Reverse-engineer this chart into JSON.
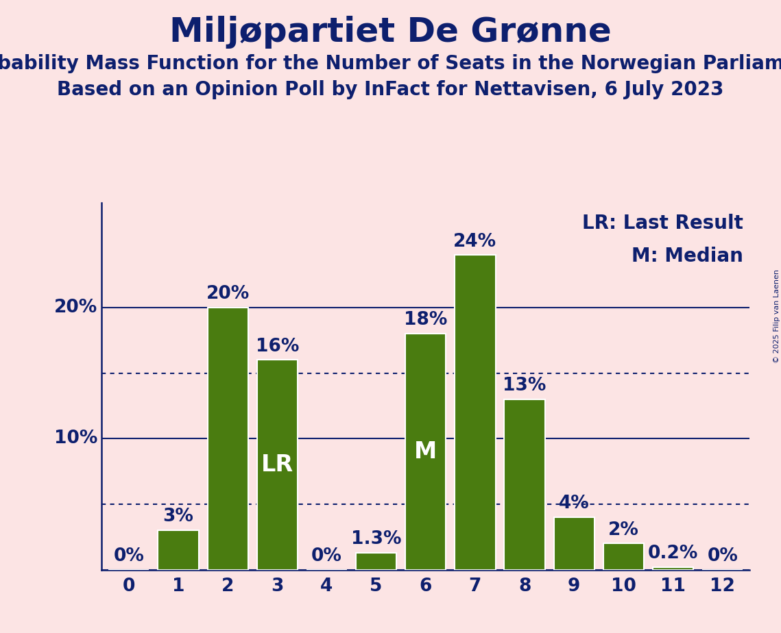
{
  "title": "Miljøpartiet De Grønne",
  "subtitle1": "Probability Mass Function for the Number of Seats in the Norwegian Parliament",
  "subtitle2": "Based on an Opinion Poll by InFact for Nettavisen, 6 July 2023",
  "copyright": "© 2025 Filip van Laenen",
  "seats": [
    0,
    1,
    2,
    3,
    4,
    5,
    6,
    7,
    8,
    9,
    10,
    11,
    12
  ],
  "probabilities": [
    0.0,
    3.0,
    20.0,
    16.0,
    0.0,
    1.3,
    18.0,
    24.0,
    13.0,
    4.0,
    2.0,
    0.2,
    0.0
  ],
  "bar_color": "#4a7c10",
  "bar_edge_color": "#ffffff",
  "background_color": "#fce4e4",
  "text_color": "#0d1f6e",
  "dotted_lines": [
    5.0,
    15.0
  ],
  "solid_lines": [
    0,
    10,
    20
  ],
  "lr_bar": 3,
  "median_bar": 6,
  "label_fontsize": 19,
  "title_fontsize": 36,
  "subtitle_fontsize": 20,
  "bar_label_fontsize": 19,
  "annotation_fontsize": 24,
  "legend_fontsize": 20,
  "copyright_fontsize": 8,
  "ylim": [
    0,
    28
  ],
  "bar_width": 0.82,
  "label_map": {
    "0": "0%",
    "1": "3%",
    "2": "20%",
    "3": "16%",
    "4": "0%",
    "5": "1.3%",
    "6": "18%",
    "7": "24%",
    "8": "13%",
    "9": "4%",
    "10": "2%",
    "11": "0.2%",
    "12": "0%"
  }
}
